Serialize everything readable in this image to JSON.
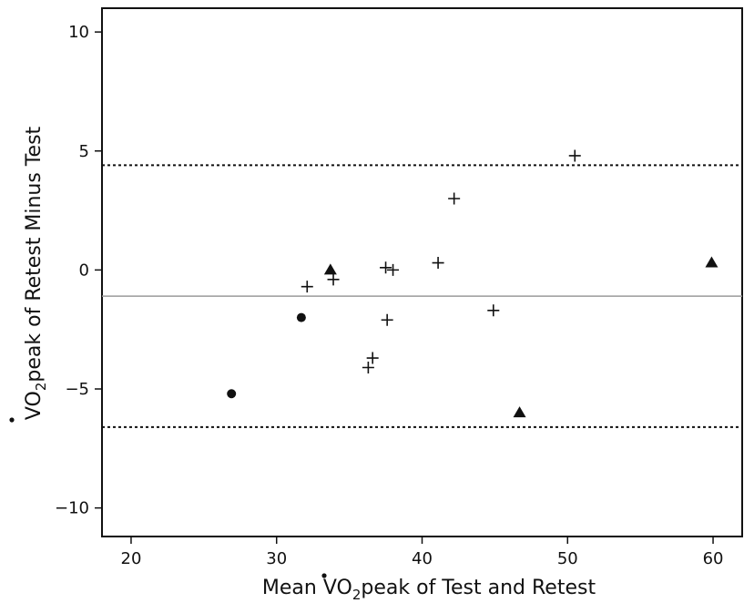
{
  "chart_data": {
    "type": "scatter",
    "xlabel": "Mean V̇O₂peak of Test and Retest",
    "ylabel": "V̇O₂peak of Retest Minus Test",
    "xlabel_parts": {
      "before": "Mean V",
      "sub": "O",
      "subscript": "2",
      "after": "peak of Test and Retest"
    },
    "ylabel_parts": {
      "before": "V",
      "sub": "O",
      "subscript": "2",
      "after": "peak of Retest Minus Test"
    },
    "xlim": [
      18,
      62
    ],
    "ylim": [
      -11.2,
      11
    ],
    "xticks": [
      20,
      30,
      40,
      50,
      60
    ],
    "yticks": [
      10,
      5,
      0,
      -5,
      -10
    ],
    "ytick_labels": [
      "10",
      "5",
      "0",
      "−5",
      "−10"
    ],
    "grid": false,
    "reference_lines": [
      {
        "kind": "mean",
        "y": -1.1,
        "style": "solid",
        "color": "#9a9a9a"
      },
      {
        "kind": "upper-limit",
        "y": 4.4,
        "style": "dotted",
        "color": "#111111"
      },
      {
        "kind": "lower-limit",
        "y": -6.6,
        "style": "dotted",
        "color": "#111111"
      }
    ],
    "series": [
      {
        "marker": "plus",
        "points": [
          {
            "x": 32.1,
            "y": -0.7
          },
          {
            "x": 33.9,
            "y": -0.4
          },
          {
            "x": 36.3,
            "y": -4.1
          },
          {
            "x": 36.6,
            "y": -3.7
          },
          {
            "x": 37.5,
            "y": 0.1
          },
          {
            "x": 37.6,
            "y": -2.1
          },
          {
            "x": 38.0,
            "y": 0.0
          },
          {
            "x": 41.1,
            "y": 0.3
          },
          {
            "x": 42.2,
            "y": 3.0
          },
          {
            "x": 44.9,
            "y": -1.7
          },
          {
            "x": 50.5,
            "y": 4.8
          }
        ]
      },
      {
        "marker": "circle",
        "points": [
          {
            "x": 26.9,
            "y": -5.2
          },
          {
            "x": 31.7,
            "y": -2.0
          }
        ]
      },
      {
        "marker": "triangle",
        "points": [
          {
            "x": 33.7,
            "y": 0.0
          },
          {
            "x": 46.7,
            "y": -6.0
          },
          {
            "x": 59.9,
            "y": 0.3
          }
        ]
      }
    ]
  }
}
